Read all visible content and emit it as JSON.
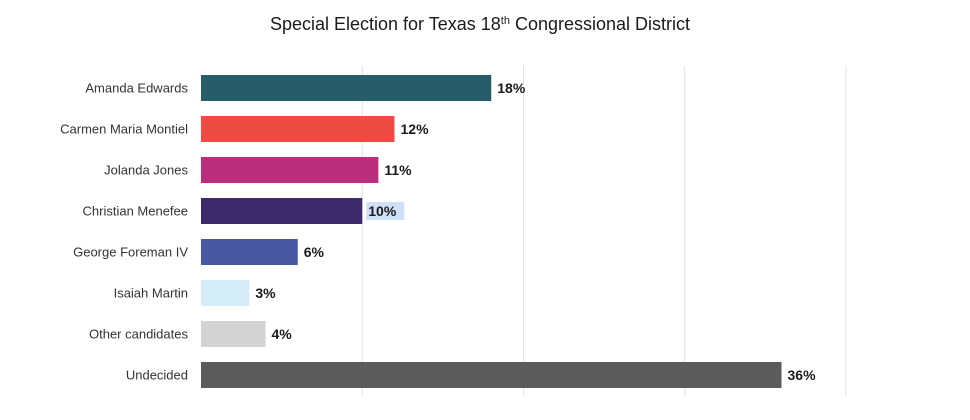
{
  "chart_data": {
    "type": "bar",
    "orientation": "horizontal",
    "title": "Special Election for Texas 18",
    "title_superscript": "th",
    "title_suffix": " Congressional District",
    "categories": [
      "Amanda Edwards",
      "Carmen Maria Montiel",
      "Jolanda Jones",
      "Christian Menefee",
      "George Foreman IV",
      "Isaiah Martin",
      "Other candidates",
      "Undecided"
    ],
    "values": [
      18,
      12,
      11,
      10,
      6,
      3,
      4,
      36
    ],
    "value_labels": [
      "18%",
      "12%",
      "11%",
      "10%",
      "6%",
      "3%",
      "4%",
      "36%"
    ],
    "colors": [
      "#265d68",
      "#ef4b45",
      "#bb2e7c",
      "#3c2a6b",
      "#4857a1",
      "#d4edf8",
      "#d3d3d3",
      "#5b5b5b"
    ],
    "highlighted_label_index": 3,
    "highlight_color": "#cfe0f8",
    "xlim": [
      0,
      40
    ],
    "grid_step": 10,
    "grid": true,
    "legend": "none",
    "xlabel": "",
    "ylabel": ""
  }
}
